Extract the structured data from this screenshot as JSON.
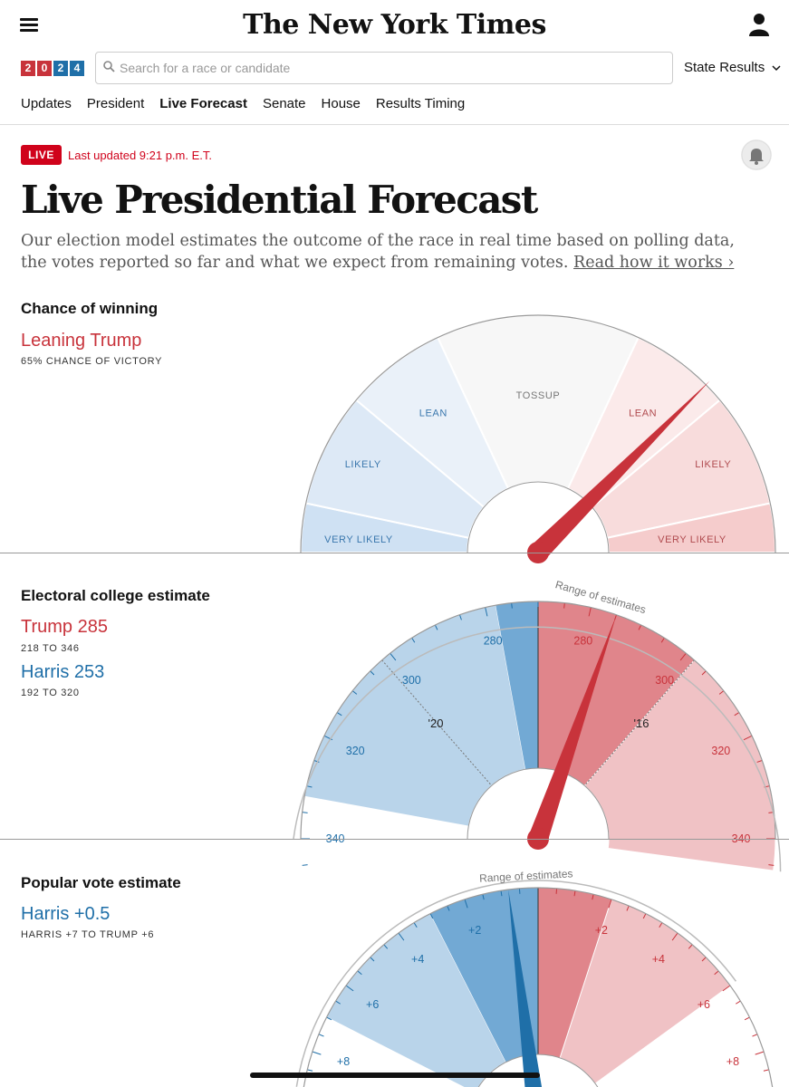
{
  "header": {
    "masthead": "The New York Times",
    "logo": [
      "2",
      "0",
      "2",
      "4"
    ],
    "search_placeholder": "Search for a race or candidate",
    "state_results": "State Results",
    "nav": [
      "Updates",
      "President",
      "Live Forecast",
      "Senate",
      "House",
      "Results Timing"
    ],
    "nav_active": "Live Forecast"
  },
  "colors": {
    "red": "#c8333b",
    "blue": "#1f6fa8",
    "live": "#d0021b"
  },
  "page": {
    "live_badge": "LIVE",
    "updated": "Last updated 9:21 p.m. E.T.",
    "title": "Live Presidential Forecast",
    "summary": "Our election model estimates the outcome of the race in real time based on polling data, the votes reported so far and what we expect from remaining votes.",
    "read_more": "Read how it works ›"
  },
  "chance": {
    "title": "Chance of winning",
    "leader": "Leaning Trump",
    "sub": "65% CHANCE OF VICTORY",
    "trump_probability_pct": 65,
    "segments": [
      "VERY LIKELY",
      "LIKELY",
      "LEAN",
      "TOSSUP",
      "LEAN",
      "LIKELY",
      "VERY LIKELY"
    ]
  },
  "electoral": {
    "title": "Electoral college estimate",
    "trump": "Trump 285",
    "trump_range": "218 TO 346",
    "harris": "Harris 253",
    "harris_range": "192 TO 320",
    "trump_value": 285,
    "range_label": "Range of estimates",
    "blue_ticks": [
      "280",
      "300",
      "320",
      "340"
    ],
    "red_ticks": [
      "280",
      "300",
      "320",
      "340"
    ],
    "past": [
      "'20",
      "'16"
    ]
  },
  "popular": {
    "title": "Popular vote estimate",
    "leader": "Harris +0.5",
    "sub": "HARRIS +7 TO TRUMP +6",
    "harris_margin": 0.5,
    "range_label": "Range of estimates",
    "blue_ticks": [
      "+2",
      "+4",
      "+6",
      "+8"
    ],
    "red_ticks": [
      "+2",
      "+4",
      "+6",
      "+8"
    ]
  }
}
